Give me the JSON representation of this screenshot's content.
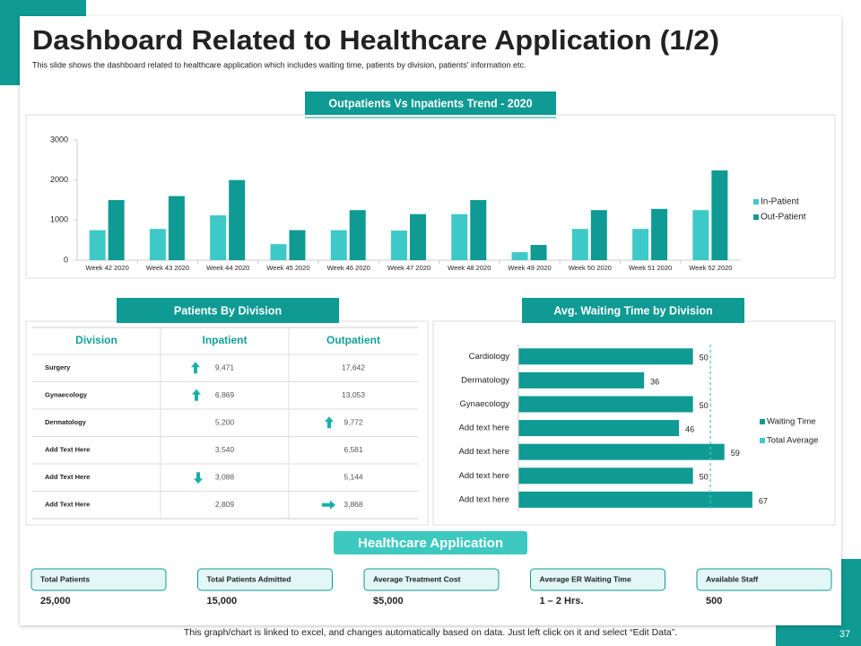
{
  "header": {
    "title": "Dashboard Related to Healthcare Application (1/2)",
    "subtitle": "This slide shows the dashboard related to healthcare application  which includes waiting time, patients by division, patients' information etc."
  },
  "chart_data": [
    {
      "type": "bar",
      "title": "Outpatients Vs Inpatients Trend - 2020",
      "categories": [
        "Week 42 2020",
        "Week 43 2020",
        "Week 44 2020",
        "Week 45 2020",
        "Week 46 2020",
        "Week 47 2020",
        "Week 48 2020",
        "Week 49 2020",
        "Week 50 2020",
        "Week 51 2020",
        "Week 52 2020"
      ],
      "series": [
        {
          "name": "In-Patient",
          "color": "#3ec9c9",
          "values": [
            750,
            780,
            1120,
            400,
            750,
            740,
            1150,
            200,
            780,
            780,
            1250
          ]
        },
        {
          "name": "Out-Patient",
          "color": "#0f9a94",
          "values": [
            1500,
            1600,
            2000,
            750,
            1250,
            1150,
            1500,
            380,
            1250,
            1280,
            2240
          ]
        }
      ],
      "ylim": [
        0,
        3000
      ],
      "yticks": [
        0,
        1000,
        2000,
        3000
      ],
      "grid": false,
      "legend": "right"
    },
    {
      "type": "barh",
      "title": "Avg. Waiting Time by Division",
      "categories": [
        "Cardiology",
        "Dermatology",
        "Gynaecology",
        "Add text here",
        "Add text here",
        "Add text here",
        "Add text here"
      ],
      "series": [
        {
          "name": "Waiting Time",
          "color": "#0f9a94",
          "values": [
            50,
            36,
            50,
            46,
            59,
            50,
            67
          ]
        },
        {
          "name": "Total Average",
          "color": "#3ec9c9",
          "value": 55
        }
      ],
      "xlim": [
        0,
        75
      ],
      "legend": "right"
    }
  ],
  "table": {
    "title": "Patients By Division",
    "headers": [
      "Division",
      "Inpatient",
      "Outpatient"
    ],
    "rows": [
      [
        "Surgery",
        "9,471",
        "17,642"
      ],
      [
        "Gynaecology",
        "6,869",
        "13,053"
      ],
      [
        "Dermatology",
        "5,200",
        "9,772"
      ],
      [
        "Add Text Here",
        "3,540",
        "6,581"
      ],
      [
        "Add Text Here",
        "3,088",
        "5,144"
      ],
      [
        "Add Text Here",
        "2,809",
        "3,868"
      ]
    ]
  },
  "section": "Healthcare Application",
  "kpis": [
    {
      "label": "Total Patients",
      "value": "25,000"
    },
    {
      "label": "Total Patients Admitted",
      "value": "15,000"
    },
    {
      "label": "Average Treatment Cost",
      "value": "$5,000"
    },
    {
      "label": "Average ER Waiting Time",
      "value": "1 – 2 Hrs."
    },
    {
      "label": "Available Staff",
      "value": "500"
    }
  ],
  "footer": "This graph/chart is linked to excel, and changes automatically based on data. Just left click on it and select “Edit Data”.",
  "page_number": "37"
}
